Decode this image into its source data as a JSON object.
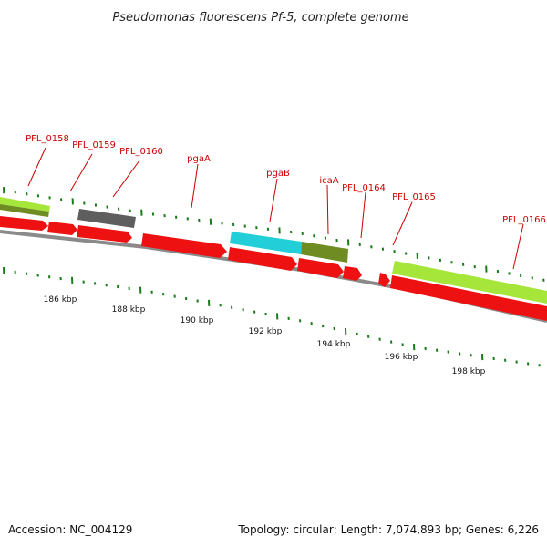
{
  "title": "Pseudomonas fluorescens Pf-5, complete genome",
  "footer": {
    "accession": "Accession: NC_004129",
    "summary": "Topology: circular; Length: 7,074,893 bp; Genes: 6,226"
  },
  "colors": {
    "label": "#cc0000",
    "tick": "#1a7a1a",
    "backbone": "#8a8a8a",
    "feature_red": "#ee1111",
    "feature_lime": "#a6e63a",
    "feature_olive": "#6f8c23",
    "feature_gray": "#5e5e5e",
    "feature_cyan": "#22cfd8"
  },
  "gene_labels": [
    "PFL_0158",
    "PFL_0159",
    "PFL_0160",
    "pgaA",
    "pgaB",
    "icaA",
    "PFL_0164",
    "PFL_0165",
    "PFL_0166"
  ],
  "scale_labels": [
    "186 kbp",
    "188 kbp",
    "190 kbp",
    "192 kbp",
    "194 kbp",
    "196 kbp",
    "198 kbp"
  ]
}
